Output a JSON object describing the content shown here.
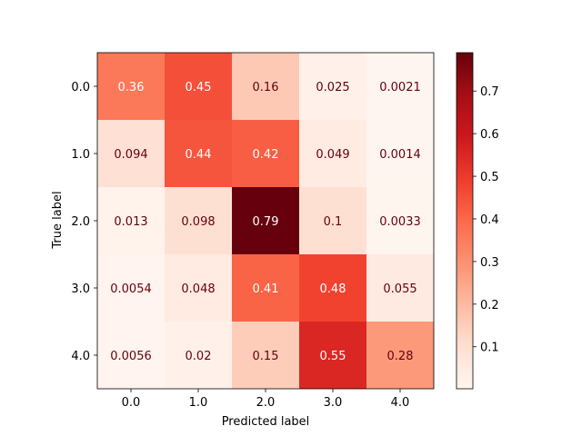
{
  "chart_data": {
    "type": "heatmap",
    "title": "",
    "xlabel": "Predicted label",
    "ylabel": "True label",
    "x_categories": [
      "0.0",
      "1.0",
      "2.0",
      "3.0",
      "4.0"
    ],
    "y_categories": [
      "0.0",
      "1.0",
      "2.0",
      "3.0",
      "4.0"
    ],
    "values": [
      [
        0.36,
        0.45,
        0.16,
        0.025,
        0.0021
      ],
      [
        0.094,
        0.44,
        0.42,
        0.049,
        0.0014
      ],
      [
        0.013,
        0.098,
        0.79,
        0.1,
        0.0033
      ],
      [
        0.0054,
        0.048,
        0.41,
        0.48,
        0.055
      ],
      [
        0.0056,
        0.02,
        0.15,
        0.55,
        0.28
      ]
    ],
    "value_labels": [
      [
        "0.36",
        "0.45",
        "0.16",
        "0.025",
        "0.0021"
      ],
      [
        "0.094",
        "0.44",
        "0.42",
        "0.049",
        "0.0014"
      ],
      [
        "0.013",
        "0.098",
        "0.79",
        "0.1",
        "0.0033"
      ],
      [
        "0.0054",
        "0.048",
        "0.41",
        "0.48",
        "0.055"
      ],
      [
        "0.0056",
        "0.02",
        "0.15",
        "0.55",
        "0.28"
      ]
    ],
    "colormap": "Reds",
    "colorbar": {
      "vmin": 0.0014,
      "vmax": 0.79,
      "ticks": [
        0.1,
        0.2,
        0.3,
        0.4,
        0.5,
        0.6,
        0.7
      ],
      "tick_labels": [
        "0.1",
        "0.2",
        "0.3",
        "0.4",
        "0.5",
        "0.6",
        "0.7"
      ]
    },
    "text_colors": {
      "dark": "#67000d",
      "light": "#ffffff"
    }
  }
}
